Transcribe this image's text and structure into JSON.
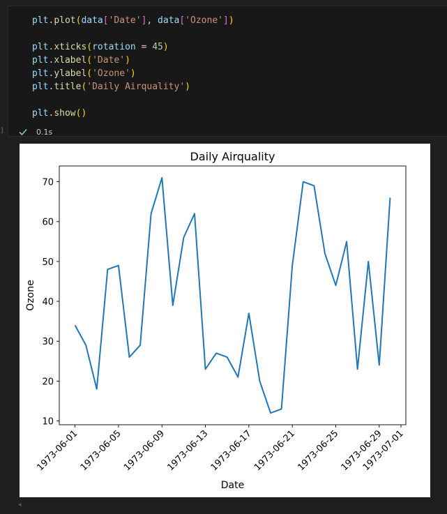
{
  "code_lines": [
    [
      [
        "plt",
        "tok-var"
      ],
      [
        ".",
        "tok-p"
      ],
      [
        "plot",
        "tok-fn"
      ],
      [
        "(",
        "tok-p1"
      ],
      [
        "data",
        "tok-var"
      ],
      [
        "[",
        "tok-p2"
      ],
      [
        "'Date'",
        "tok-str"
      ],
      [
        "]",
        "tok-p2"
      ],
      [
        ", ",
        "tok-p"
      ],
      [
        "data",
        "tok-var"
      ],
      [
        "[",
        "tok-p2"
      ],
      [
        "'Ozone'",
        "tok-str"
      ],
      [
        "]",
        "tok-p2"
      ],
      [
        ")",
        "tok-p1"
      ]
    ],
    [],
    [
      [
        "plt",
        "tok-var"
      ],
      [
        ".",
        "tok-p"
      ],
      [
        "xticks",
        "tok-fn"
      ],
      [
        "(",
        "tok-p1"
      ],
      [
        "rotation",
        "tok-var"
      ],
      [
        " = ",
        "tok-p"
      ],
      [
        "45",
        "tok-num"
      ],
      [
        ")",
        "tok-p1"
      ]
    ],
    [
      [
        "plt",
        "tok-var"
      ],
      [
        ".",
        "tok-p"
      ],
      [
        "xlabel",
        "tok-fn"
      ],
      [
        "(",
        "tok-p1"
      ],
      [
        "'Date'",
        "tok-str"
      ],
      [
        ")",
        "tok-p1"
      ]
    ],
    [
      [
        "plt",
        "tok-var"
      ],
      [
        ".",
        "tok-p"
      ],
      [
        "ylabel",
        "tok-fn"
      ],
      [
        "(",
        "tok-p1"
      ],
      [
        "'Ozone'",
        "tok-str"
      ],
      [
        ")",
        "tok-p1"
      ]
    ],
    [
      [
        "plt",
        "tok-var"
      ],
      [
        ".",
        "tok-p"
      ],
      [
        "title",
        "tok-fn"
      ],
      [
        "(",
        "tok-p1"
      ],
      [
        "'Daily Airquality'",
        "tok-str"
      ],
      [
        ")",
        "tok-p1"
      ]
    ],
    [],
    [
      [
        "plt",
        "tok-var"
      ],
      [
        ".",
        "tok-p"
      ],
      [
        "show",
        "tok-fn"
      ],
      [
        "()",
        "tok-p1"
      ]
    ]
  ],
  "status": {
    "icon": "check-icon",
    "time": "0.1s",
    "color": "#89d185"
  },
  "chart_data": {
    "type": "line",
    "title": "Daily Airquality",
    "xlabel": "Date",
    "ylabel": "Ozone",
    "line_color": "#1f77b4",
    "x": [
      "1973-06-01",
      "1973-06-02",
      "1973-06-03",
      "1973-06-04",
      "1973-06-05",
      "1973-06-06",
      "1973-06-07",
      "1973-06-08",
      "1973-06-09",
      "1973-06-10",
      "1973-06-11",
      "1973-06-12",
      "1973-06-13",
      "1973-06-14",
      "1973-06-15",
      "1973-06-16",
      "1973-06-17",
      "1973-06-18",
      "1973-06-19",
      "1973-06-20",
      "1973-06-21",
      "1973-06-22",
      "1973-06-23",
      "1973-06-24",
      "1973-06-25",
      "1973-06-26",
      "1973-06-27",
      "1973-06-28",
      "1973-06-29",
      "1973-06-30"
    ],
    "values": [
      34,
      29,
      18,
      48,
      49,
      26,
      29,
      62,
      71,
      39,
      56,
      62,
      23,
      27,
      26,
      21,
      37,
      20,
      12,
      13,
      49,
      70,
      69,
      52,
      44,
      55,
      23,
      50,
      24,
      66
    ],
    "xticks": [
      "1973-06-01",
      "1973-06-05",
      "1973-06-09",
      "1973-06-13",
      "1973-06-17",
      "1973-06-21",
      "1973-06-25",
      "1973-06-29",
      "1973-07-01"
    ],
    "xtick_rotation": 45,
    "xlim": [
      "1973-05-30.55",
      "1973-07-01.45"
    ],
    "yticks": [
      10,
      20,
      30,
      40,
      50,
      60,
      70
    ],
    "ylim": [
      9.05,
      73.95
    ],
    "grid": false
  }
}
